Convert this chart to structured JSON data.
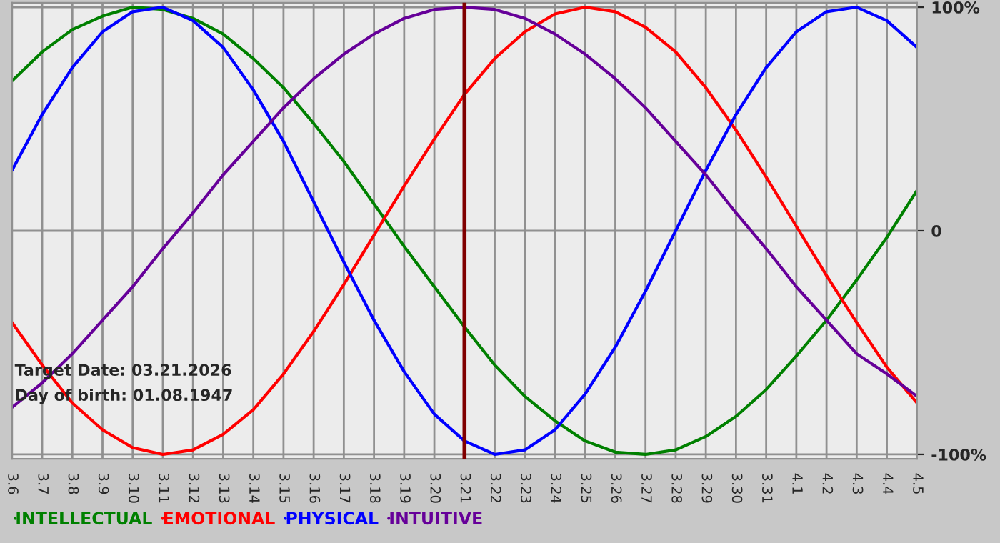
{
  "chart_data": {
    "type": "line",
    "categories": [
      "3.6",
      "3.7",
      "3.8",
      "3.9",
      "3.10",
      "3.11",
      "3.12",
      "3.13",
      "3.14",
      "3.15",
      "3.16",
      "3.17",
      "3.18",
      "3.19",
      "3.20",
      "3.21",
      "3.22",
      "3.23",
      "3.24",
      "3.25",
      "3.26",
      "3.27",
      "3.28",
      "3.29",
      "3.30",
      "3.31",
      "4.1",
      "4.2",
      "4.3",
      "4.4",
      "4.5"
    ],
    "series": [
      {
        "name": "INTELLECTUAL",
        "color": "#008000",
        "values": [
          67,
          80,
          90,
          96,
          100,
          99,
          95,
          88,
          77,
          64,
          48,
          31,
          12,
          -7,
          -25,
          -43,
          -60,
          -74,
          -85,
          -94,
          -99,
          -100,
          -98,
          -92,
          -83,
          -71,
          -56,
          -40,
          -22,
          -3,
          18
        ]
      },
      {
        "name": "EMOTIONAL",
        "color": "#ff0000",
        "values": [
          -41,
          -60,
          -77,
          -89,
          -97,
          -100,
          -98,
          -91,
          -80,
          -64,
          -45,
          -24,
          -2,
          20,
          41,
          61,
          77,
          89,
          97,
          100,
          98,
          91,
          80,
          64,
          45,
          24,
          2,
          -20,
          -41,
          -61,
          -77
        ]
      },
      {
        "name": "PHYSICAL",
        "color": "#0000ff",
        "values": [
          27,
          52,
          73,
          89,
          98,
          100,
          94,
          82,
          63,
          40,
          13,
          -14,
          -40,
          -63,
          -82,
          -94,
          -100,
          -98,
          -89,
          -73,
          -52,
          -27,
          0,
          27,
          52,
          73,
          89,
          98,
          100,
          94,
          82
        ]
      },
      {
        "name": "INTUITIVE",
        "color": "#660099",
        "values": [
          -79,
          -68,
          -55,
          -40,
          -25,
          -8,
          8,
          25,
          40,
          55,
          68,
          79,
          88,
          95,
          99,
          100,
          99,
          95,
          88,
          79,
          68,
          55,
          40,
          25,
          8,
          -8,
          -25,
          -40,
          -55,
          -64,
          -74
        ]
      }
    ],
    "ylim": [
      -102,
      102
    ],
    "yticks": [
      {
        "value": -100,
        "label": "-100%"
      },
      0,
      {
        "value": 100,
        "label": "100%"
      }
    ],
    "ref_lines": [
      {
        "axis": "x",
        "value": "3.21",
        "color": "#800000"
      }
    ],
    "annotations": [
      "Target Date: 03.21.2026",
      "Day of birth: 01.08.1947"
    ],
    "grid": true,
    "legend": "bottom",
    "marker": "none",
    "line_style": "solid"
  }
}
